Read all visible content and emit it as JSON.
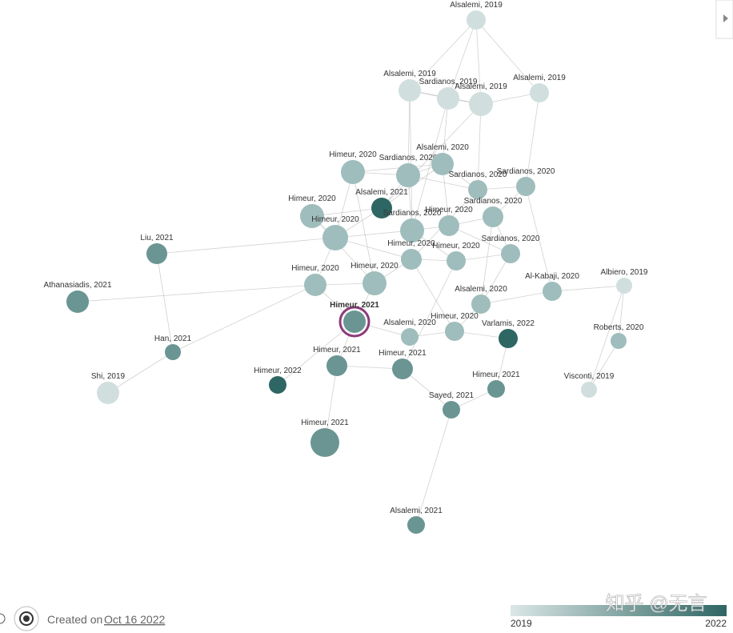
{
  "nodes": [
    {
      "label": "Alsalemi, 2019"
    },
    {
      "label": "Alsalemi, 2019"
    },
    {
      "label": "Sardianos, 2019"
    },
    {
      "label": "Alsalemi, 2019"
    },
    {
      "label": "Alsalemi, 2019"
    },
    {
      "label": "Himeur, 2020"
    },
    {
      "label": "Sardianos, 2020"
    },
    {
      "label": "Alsalemi, 2020"
    },
    {
      "label": "Sardianos, 2020"
    },
    {
      "label": "Sardianos, 2020"
    },
    {
      "label": "Alsalemi, 2021"
    },
    {
      "label": "Himeur, 2020"
    },
    {
      "label": "Himeur, 2020"
    },
    {
      "label": "Sardianos, 2020"
    },
    {
      "label": "Himeur, 2020"
    },
    {
      "label": "Sardianos, 2020"
    },
    {
      "label": "Himeur, 2020"
    },
    {
      "label": "Himeur, 2020"
    },
    {
      "label": "Sardianos, 2020"
    },
    {
      "label": "Liu, 2021"
    },
    {
      "label": "Himeur, 2020"
    },
    {
      "label": "Himeur, 2020"
    },
    {
      "label": "Athanasiadis, 2021"
    },
    {
      "label": "Al-Kabaji, 2020"
    },
    {
      "label": "Albiero, 2019"
    },
    {
      "label": "Himeur, 2021"
    },
    {
      "label": "Alsalemi, 2020"
    },
    {
      "label": "Alsalemi, 2020"
    },
    {
      "label": "Himeur, 2020"
    },
    {
      "label": "Varlamis, 2022"
    },
    {
      "label": "Roberts, 2020"
    },
    {
      "label": "Han, 2021"
    },
    {
      "label": "Himeur, 2021"
    },
    {
      "label": "Himeur, 2021"
    },
    {
      "label": "Himeur, 2022"
    },
    {
      "label": "Himeur, 2021"
    },
    {
      "label": "Visconti, 2019"
    },
    {
      "label": "Shi, 2019"
    },
    {
      "label": "Sayed, 2021"
    },
    {
      "label": "Himeur, 2021"
    },
    {
      "label": "Alsalemi, 2021"
    }
  ],
  "legend": {
    "start": "2019",
    "end": "2022"
  },
  "footer": {
    "created": "Created on",
    "date": "Oct 16 2022"
  },
  "watermark": "知乎 @无言"
}
